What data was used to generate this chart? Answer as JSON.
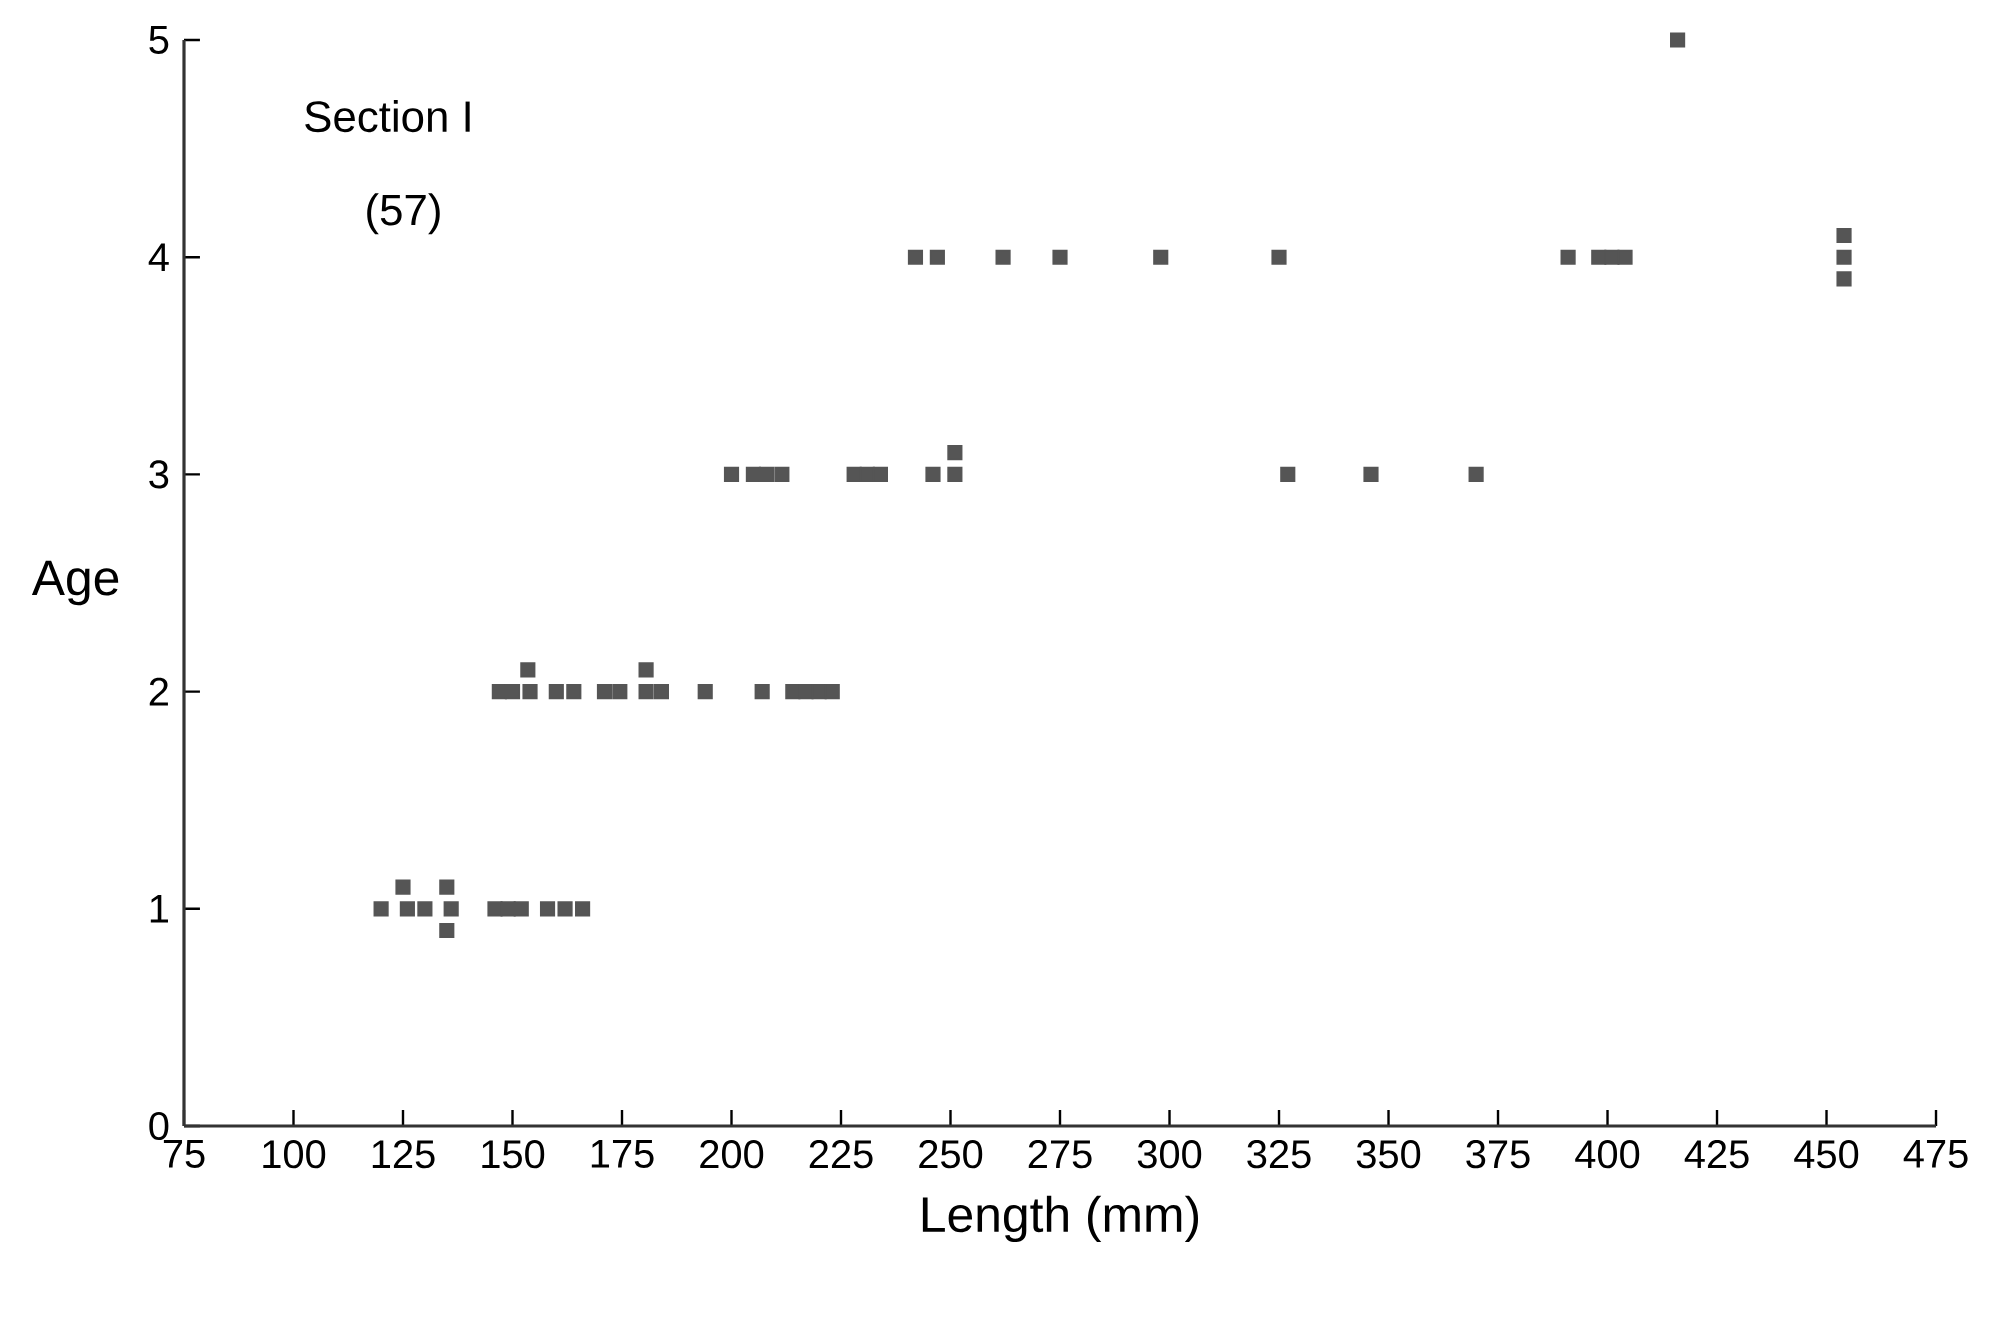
{
  "chart_data": {
    "type": "scatter",
    "xlabel": "Length (mm)",
    "ylabel": "Age",
    "annotations": [
      "Section I",
      "(57)"
    ],
    "xlim": [
      75,
      475
    ],
    "ylim": [
      0,
      5
    ],
    "xticks": [
      75,
      100,
      125,
      150,
      175,
      200,
      225,
      250,
      275,
      300,
      325,
      350,
      375,
      400,
      425,
      450,
      475
    ],
    "yticks": [
      0,
      1,
      2,
      3,
      4,
      5
    ],
    "grid": false,
    "marker": "square",
    "series": [
      {
        "color": "#555555",
        "x": [
          120,
          126,
          130,
          136,
          125,
          135,
          135,
          146,
          149,
          152,
          158,
          162,
          166,
          147,
          150,
          154,
          153.5,
          160,
          164,
          171,
          174.5,
          180.5,
          184,
          180.5,
          194,
          207,
          214,
          217,
          220,
          223,
          200,
          205,
          208,
          211.5,
          228,
          231,
          234,
          246,
          251,
          251,
          327,
          346,
          370,
          242,
          247,
          262,
          275,
          298,
          325,
          391,
          398,
          401,
          404,
          454,
          454,
          454,
          416
        ],
        "values": [
          1,
          1,
          1,
          1,
          1.1,
          1.1,
          0.9,
          1,
          1,
          1,
          1,
          1,
          1,
          2,
          2,
          2,
          2.1,
          2,
          2,
          2,
          2,
          2,
          2,
          2.1,
          2,
          2,
          2,
          2,
          2,
          2,
          3,
          3,
          3,
          3,
          3,
          3,
          3,
          3,
          3,
          3.1,
          3,
          3,
          3,
          4,
          4,
          4,
          4,
          4,
          4,
          4,
          4,
          4,
          4,
          4.1,
          4,
          3.9,
          5
        ]
      }
    ]
  }
}
